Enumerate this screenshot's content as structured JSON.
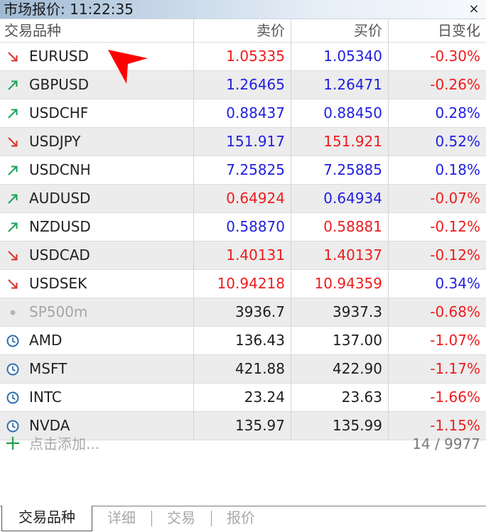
{
  "window": {
    "title": "市场报价: 11:22:35",
    "close_label": "×"
  },
  "columns": {
    "symbol": "交易品种",
    "bid": "卖价",
    "ask": "买价",
    "change": "日变化"
  },
  "rows": [
    {
      "symbol": "EURUSD",
      "icon": "arrow-down-icon",
      "bid": "1.05335",
      "bid_color": "red",
      "ask": "1.05340",
      "ask_color": "blue",
      "change": "-0.30%",
      "change_color": "red"
    },
    {
      "symbol": "GBPUSD",
      "icon": "arrow-up-icon",
      "bid": "1.26465",
      "bid_color": "blue",
      "ask": "1.26471",
      "ask_color": "blue",
      "change": "-0.26%",
      "change_color": "red"
    },
    {
      "symbol": "USDCHF",
      "icon": "arrow-up-icon",
      "bid": "0.88437",
      "bid_color": "blue",
      "ask": "0.88450",
      "ask_color": "blue",
      "change": "0.28%",
      "change_color": "blue"
    },
    {
      "symbol": "USDJPY",
      "icon": "arrow-down-icon",
      "bid": "151.917",
      "bid_color": "blue",
      "ask": "151.921",
      "ask_color": "red",
      "change": "0.52%",
      "change_color": "blue"
    },
    {
      "symbol": "USDCNH",
      "icon": "arrow-up-icon",
      "bid": "7.25825",
      "bid_color": "blue",
      "ask": "7.25885",
      "ask_color": "blue",
      "change": "0.18%",
      "change_color": "blue"
    },
    {
      "symbol": "AUDUSD",
      "icon": "arrow-up-icon",
      "bid": "0.64924",
      "bid_color": "red",
      "ask": "0.64934",
      "ask_color": "blue",
      "change": "-0.07%",
      "change_color": "red"
    },
    {
      "symbol": "NZDUSD",
      "icon": "arrow-up-icon",
      "bid": "0.58870",
      "bid_color": "blue",
      "ask": "0.58881",
      "ask_color": "red",
      "change": "-0.12%",
      "change_color": "red"
    },
    {
      "symbol": "USDCAD",
      "icon": "arrow-down-icon",
      "bid": "1.40131",
      "bid_color": "red",
      "ask": "1.40137",
      "ask_color": "red",
      "change": "-0.12%",
      "change_color": "red"
    },
    {
      "symbol": "USDSEK",
      "icon": "arrow-down-icon",
      "bid": "10.94218",
      "bid_color": "red",
      "ask": "10.94359",
      "ask_color": "red",
      "change": "0.34%",
      "change_color": "blue"
    },
    {
      "symbol": "SP500m",
      "icon": "dot-icon",
      "symbol_color": "gray",
      "bid": "3936.7",
      "bid_color": "black",
      "ask": "3937.3",
      "ask_color": "black",
      "change": "-0.68%",
      "change_color": "red"
    },
    {
      "symbol": "AMD",
      "icon": "clock-icon",
      "bid": "136.43",
      "bid_color": "black",
      "ask": "137.00",
      "ask_color": "black",
      "change": "-1.07%",
      "change_color": "red"
    },
    {
      "symbol": "MSFT",
      "icon": "clock-icon",
      "bid": "421.88",
      "bid_color": "black",
      "ask": "422.90",
      "ask_color": "black",
      "change": "-1.17%",
      "change_color": "red"
    },
    {
      "symbol": "INTC",
      "icon": "clock-icon",
      "bid": "23.24",
      "bid_color": "black",
      "ask": "23.63",
      "ask_color": "black",
      "change": "-1.66%",
      "change_color": "red"
    },
    {
      "symbol": "NVDA",
      "icon": "clock-icon",
      "bid": "135.97",
      "bid_color": "black",
      "ask": "135.99",
      "ask_color": "black",
      "change": "-1.15%",
      "change_color": "red"
    }
  ],
  "add_symbol": {
    "label": "点击添加...",
    "count": "14 / 9977"
  },
  "tabs": [
    "交易品种",
    "详细",
    "交易",
    "报价"
  ],
  "active_tab": 0,
  "colors": {
    "red": "#ee1c1c",
    "blue": "#1f1fdf",
    "up_arrow": "#17a355",
    "down_arrow": "#d9332b",
    "clock": "#2f6fae",
    "cursor": "#ff0000"
  }
}
